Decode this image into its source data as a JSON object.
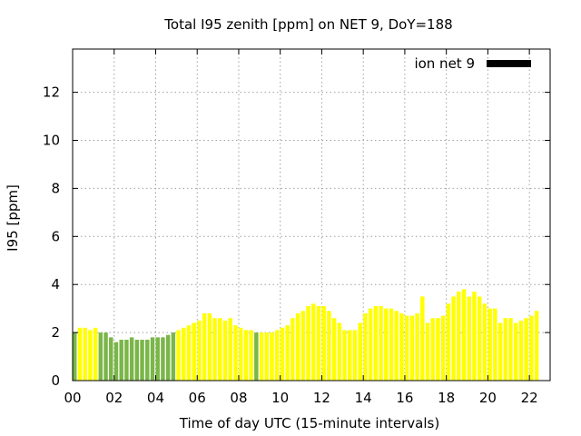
{
  "chart_data": {
    "type": "bar",
    "title": "Total I95 zenith [ppm] on NET 9, DoY=188",
    "xlabel": "Time of day UTC (15-minute intervals)",
    "ylabel": "I95 [ppm]",
    "x_unit": "hour of day (UTC)",
    "xlim": [
      0,
      23
    ],
    "ylim": [
      0,
      13.8
    ],
    "xticks": [
      0,
      2,
      4,
      6,
      8,
      10,
      12,
      14,
      16,
      18,
      20,
      22
    ],
    "xtick_labels": [
      "00",
      "02",
      "04",
      "06",
      "08",
      "10",
      "12",
      "14",
      "16",
      "18",
      "20",
      "22"
    ],
    "yticks": [
      0,
      2,
      4,
      6,
      8,
      10,
      12
    ],
    "ytick_labels": [
      "0",
      "2",
      "4",
      "6",
      "8",
      "10",
      "12"
    ],
    "grid": true,
    "legend": {
      "label": "ion net 9",
      "placement": "top-right",
      "color": "#000000"
    },
    "colors": {
      "green": "#7ab648",
      "yellow": "#ffff00"
    },
    "series": [
      {
        "bin_hours": 0.25,
        "values": [
          2.0,
          2.2,
          2.2,
          2.1,
          2.2,
          2.0,
          2.0,
          1.8,
          1.6,
          1.7,
          1.7,
          1.8,
          1.7,
          1.7,
          1.7,
          1.8,
          1.8,
          1.8,
          1.9,
          2.0,
          2.1,
          2.2,
          2.3,
          2.4,
          2.5,
          2.8,
          2.8,
          2.6,
          2.6,
          2.5,
          2.6,
          2.3,
          2.2,
          2.1,
          2.1,
          2.0,
          2.0,
          2.0,
          2.0,
          2.1,
          2.2,
          2.3,
          2.6,
          2.8,
          2.9,
          3.1,
          3.2,
          3.1,
          3.1,
          2.9,
          2.6,
          2.4,
          2.1,
          2.1,
          2.1,
          2.4,
          2.8,
          3.0,
          3.1,
          3.1,
          3.0,
          3.0,
          2.9,
          2.8,
          2.7,
          2.7,
          2.8,
          3.5,
          2.4,
          2.6,
          2.6,
          2.7,
          3.2,
          3.5,
          3.7,
          3.8,
          3.5,
          3.7,
          3.5,
          3.2,
          3.0,
          3.0,
          2.4,
          2.6,
          2.6,
          2.4,
          2.5,
          2.6,
          2.7,
          2.9
        ],
        "color_keys": [
          "green",
          "yellow",
          "yellow",
          "yellow",
          "yellow",
          "green",
          "green",
          "green",
          "green",
          "green",
          "green",
          "green",
          "green",
          "green",
          "green",
          "green",
          "green",
          "green",
          "green",
          "green",
          "yellow",
          "yellow",
          "yellow",
          "yellow",
          "yellow",
          "yellow",
          "yellow",
          "yellow",
          "yellow",
          "yellow",
          "yellow",
          "yellow",
          "yellow",
          "yellow",
          "yellow",
          "green",
          "yellow",
          "yellow",
          "yellow",
          "yellow",
          "yellow",
          "yellow",
          "yellow",
          "yellow",
          "yellow",
          "yellow",
          "yellow",
          "yellow",
          "yellow",
          "yellow",
          "yellow",
          "yellow",
          "yellow",
          "yellow",
          "yellow",
          "yellow",
          "yellow",
          "yellow",
          "yellow",
          "yellow",
          "yellow",
          "yellow",
          "yellow",
          "yellow",
          "yellow",
          "yellow",
          "yellow",
          "yellow",
          "yellow",
          "yellow",
          "yellow",
          "yellow",
          "yellow",
          "yellow",
          "yellow",
          "yellow",
          "yellow",
          "yellow",
          "yellow",
          "yellow",
          "yellow",
          "yellow",
          "yellow",
          "yellow",
          "yellow",
          "yellow",
          "yellow",
          "yellow",
          "yellow",
          "yellow"
        ]
      }
    ]
  }
}
